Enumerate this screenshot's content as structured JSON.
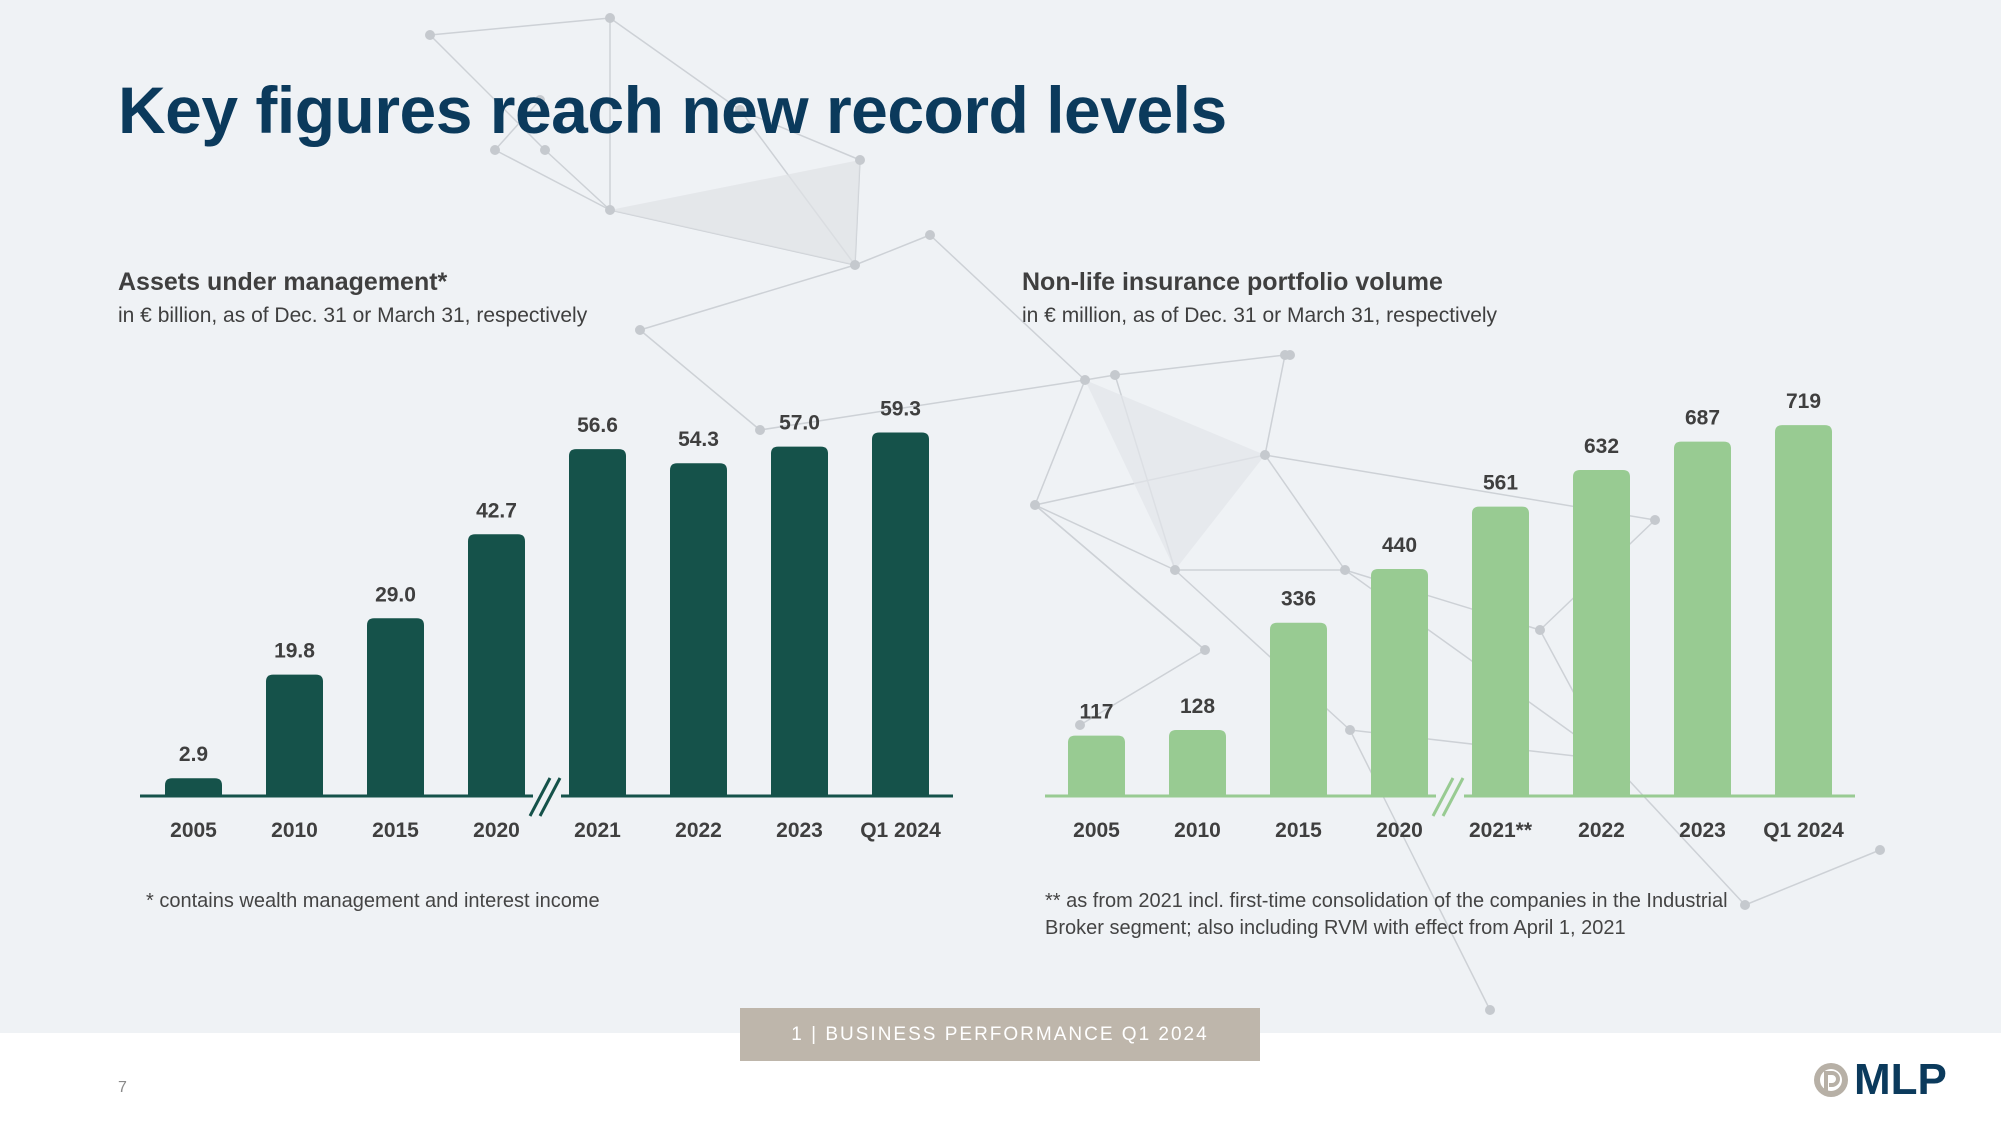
{
  "page": {
    "title": "Key figures reach new record levels",
    "section_label": "1 | BUSINESS PERFORMANCE Q1 2024",
    "page_number": "7",
    "logo_text": "MLP"
  },
  "colors": {
    "title": "#0b3a5c",
    "aum_bars": "#15524a",
    "nonlife_bars": "#98cb92",
    "background": "#eff2f5",
    "section_tab": "#beb6ab"
  },
  "chart_data": [
    {
      "type": "bar",
      "title": "Assets under management*",
      "subtitle": "in € billion, as of Dec. 31 or March 31, respectively",
      "categories": [
        "2005",
        "2010",
        "2015",
        "2020",
        "2021",
        "2022",
        "2023",
        "Q1 2024"
      ],
      "values": [
        2.9,
        19.8,
        29.0,
        42.7,
        56.6,
        54.3,
        57.0,
        59.3
      ],
      "value_labels": [
        "2.9",
        "19.8",
        "29.0",
        "42.7",
        "56.6",
        "54.3",
        "57.0",
        "59.3"
      ],
      "axis_break_after_index": 3,
      "footnote": "* contains wealth management and interest income",
      "color": "#15524a",
      "ylim": [
        0,
        62
      ]
    },
    {
      "type": "bar",
      "title": "Non-life insurance portfolio volume",
      "subtitle": "in € million, as of Dec. 31 or March 31, respectively",
      "categories": [
        "2005",
        "2010",
        "2015",
        "2020",
        "2021**",
        "2022",
        "2023",
        "Q1 2024"
      ],
      "values": [
        117,
        128,
        336,
        440,
        561,
        632,
        687,
        719
      ],
      "value_labels": [
        "117",
        "128",
        "336",
        "440",
        "561",
        "632",
        "687",
        "719"
      ],
      "axis_break_after_index": 3,
      "footnote": "** as from 2021 incl. first-time consolidation of the companies in the Industrial Broker segment; also including RVM with effect from April 1, 2021",
      "color": "#98cb92",
      "ylim": [
        0,
        760
      ]
    }
  ]
}
